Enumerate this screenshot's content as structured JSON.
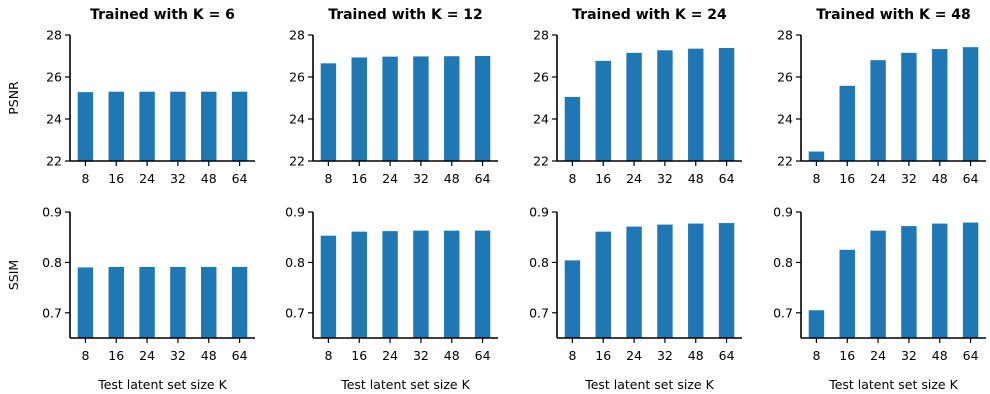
{
  "chart_data": {
    "type": "bar",
    "categories": [
      "8",
      "16",
      "24",
      "32",
      "48",
      "64"
    ],
    "xlabel": "Test latent set size K",
    "bar_color": "#1f77b4",
    "rows": [
      {
        "ylabel": "PSNR",
        "ylim": [
          22,
          28
        ],
        "yticks": [
          "22",
          "24",
          "26",
          "28"
        ]
      },
      {
        "ylabel": "SSIM",
        "ylim": [
          0.65,
          0.9
        ],
        "yticks": [
          "0.7",
          "0.8",
          "0.9"
        ]
      }
    ],
    "panels": [
      {
        "title": "Trained with K = 6",
        "psnr": [
          25.28,
          25.3,
          25.3,
          25.3,
          25.3,
          25.3
        ],
        "ssim": [
          0.79,
          0.791,
          0.791,
          0.791,
          0.791,
          0.791
        ]
      },
      {
        "title": "Trained with K = 12",
        "psnr": [
          26.65,
          26.93,
          26.97,
          26.98,
          26.99,
          27.0
        ],
        "ssim": [
          0.853,
          0.861,
          0.862,
          0.863,
          0.863,
          0.863
        ]
      },
      {
        "title": "Trained with K = 24",
        "psnr": [
          25.05,
          26.77,
          27.15,
          27.27,
          27.35,
          27.38
        ],
        "ssim": [
          0.804,
          0.861,
          0.871,
          0.875,
          0.877,
          0.878
        ]
      },
      {
        "title": "Trained with K = 48",
        "psnr": [
          22.45,
          25.58,
          26.8,
          27.15,
          27.33,
          27.42
        ],
        "ssim": [
          0.705,
          0.825,
          0.863,
          0.872,
          0.877,
          0.879
        ]
      }
    ]
  }
}
